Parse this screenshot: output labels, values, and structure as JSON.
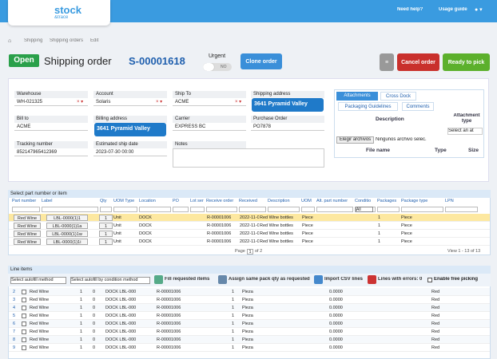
{
  "topbar": {
    "logo": "stock",
    "logo_sub": "&trace",
    "help": "Need help?",
    "guide": "Usage guide"
  },
  "breadcrumb": [
    "Shipping",
    "Shipping orders",
    "Edit"
  ],
  "header": {
    "status": "Open",
    "title": "Shipping order",
    "order_id": "S-00001618",
    "urgent_label": "Urgent",
    "urgent_value": "NO",
    "clone": "Clone order",
    "cancel": "Cancel order",
    "ready": "Ready to pick"
  },
  "form": {
    "fields": [
      {
        "label": "Warehouse",
        "value": "WH-021325"
      },
      {
        "label": "Account",
        "value": "Solaris"
      },
      {
        "label": "Ship To",
        "value": "ACME"
      },
      {
        "label": "Shipping address",
        "value": "3641 Pyramid Valley"
      },
      {
        "label": "Bill to",
        "value": "ACME"
      },
      {
        "label": "Billing address",
        "value": "3641 Pyramid Valley"
      },
      {
        "label": "Carrier",
        "value": "EXPRESS BC"
      },
      {
        "label": "Purchase Order",
        "value": "PO7878"
      },
      {
        "label": "Tracking number",
        "value": "852147965412369"
      },
      {
        "label": "Estimated ship date",
        "value": "2023-07-30 00:00"
      },
      {
        "label": "Notes"
      }
    ]
  },
  "attachments": {
    "tabs": [
      "Attachments",
      "Cross Dock",
      "Packaging Guidelines",
      "Comments"
    ],
    "columns": [
      "Description",
      "Attachment type"
    ],
    "select": "Select an at",
    "file_button": "Elegir archivos",
    "file_status": "Ningunos archivo selec.",
    "file_columns": [
      "File name",
      "Type",
      "Size"
    ]
  },
  "parts_grid": {
    "title": "Select part number or item",
    "columns": [
      "Part number",
      "Label",
      "Qty",
      "UOM Type",
      "Location",
      "PO",
      "Lot ser",
      "Receive order",
      "Received",
      "Description",
      "UOM",
      "Alt. part number",
      "Conditio",
      "Packages",
      "Package type",
      "LPN"
    ],
    "filter": "All",
    "rows": [
      [
        "Red Wine",
        "LBL-0000(1)1",
        "1",
        "Unit",
        "DOCK",
        "R-00001006",
        "2022-11-0",
        "Red Wine bottles",
        "Piece",
        "1",
        "Piece"
      ],
      [
        "Red Wine",
        "LBL-0000(1)1a",
        "1",
        "Unit",
        "DOCK",
        "R-00001006",
        "2022-11-0",
        "Red Wine bottles",
        "Piece",
        "1",
        "Piece"
      ],
      [
        "Red Wine",
        "LBL-0000(1)1w",
        "1",
        "Unit",
        "DOCK",
        "R-00001006",
        "2022-11-0",
        "Red Wine bottles",
        "Piece",
        "1",
        "Piece"
      ],
      [
        "Red Wine",
        "LBL-0000(1)1i",
        "1",
        "Unit",
        "DOCK",
        "R-00001006",
        "2022-11-0",
        "Red Wine bottles",
        "Piece",
        "1",
        "Piece"
      ]
    ],
    "pager": "Page",
    "page": "1",
    "page_total": "of 2",
    "view": "View 1 - 13 of 13"
  },
  "line_items": {
    "title": "Line items",
    "autofill": "Select autofill method",
    "autofill_condition": "Select autofill by condition method",
    "fill": "Fill requested items",
    "assign": "Assign same pack qty as requested",
    "import": "Import CSV lines",
    "errors": "Lines with errors: 0",
    "free_picking": "Enable free picking",
    "rows": [
      [
        "2",
        "Red Wine",
        "1",
        "0",
        "DOCK LBL-000",
        "R-00001006",
        "1",
        "Pieza",
        "0.0000",
        "Red"
      ],
      [
        "3",
        "Red Wine",
        "1",
        "0",
        "DOCK LBL-000",
        "R-00001006",
        "1",
        "Pieza",
        "0.0000",
        "Red"
      ],
      [
        "4",
        "Red Wine",
        "1",
        "0",
        "DOCK LBL-000",
        "R-00001006",
        "1",
        "Pieza",
        "0.0000",
        "Red"
      ],
      [
        "5",
        "Red Wine",
        "1",
        "0",
        "DOCK LBL-000",
        "R-00001006",
        "1",
        "Pieza",
        "0.0000",
        "Red"
      ],
      [
        "6",
        "Red Wine",
        "1",
        "0",
        "DOCK LBL-000",
        "R-00001006",
        "1",
        "Pieza",
        "0.0000",
        "Red"
      ],
      [
        "7",
        "Red Wine",
        "1",
        "0",
        "DOCK LBL-000",
        "R-00001006",
        "1",
        "Pieza",
        "0.0000",
        "Red"
      ],
      [
        "8",
        "Red Wine",
        "1",
        "0",
        "DOCK LBL-000",
        "R-00001006",
        "1",
        "Pieza",
        "0.0000",
        "Red"
      ],
      [
        "9",
        "Red Wine",
        "1",
        "0",
        "DOCK LBL-000",
        "R-00001006",
        "1",
        "Pieza",
        "0.0000",
        "Red"
      ]
    ]
  }
}
